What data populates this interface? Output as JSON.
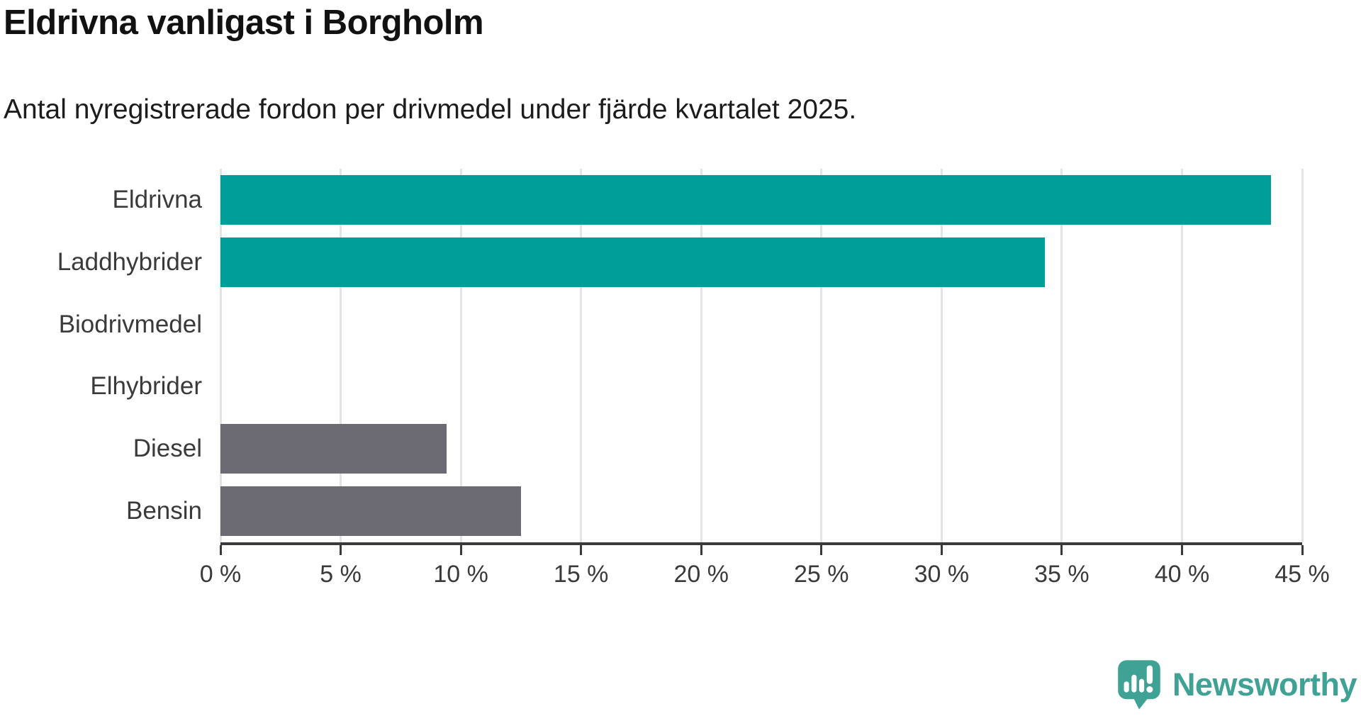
{
  "header": {
    "title": "Eldrivna vanligast i Borgholm",
    "subtitle": "Antal nyregistrerade fordon per drivmedel under fjärde kvartalet 2025."
  },
  "chart_data": {
    "type": "bar",
    "orientation": "horizontal",
    "title": "Eldrivna vanligast i Borgholm",
    "subtitle": "Antal nyregistrerade fordon per drivmedel under fjärde kvartalet 2025.",
    "categories": [
      "Eldrivna",
      "Laddhybrider",
      "Biodrivmedel",
      "Elhybrider",
      "Diesel",
      "Bensin"
    ],
    "values": [
      43.7,
      34.3,
      0,
      0,
      9.4,
      12.5
    ],
    "unit": "%",
    "bar_colors": [
      "#009e99",
      "#009e99",
      "#009e99",
      "#009e99",
      "#6c6a72",
      "#6c6a72"
    ],
    "xlim": [
      0,
      45
    ],
    "x_tick_step": 5,
    "x_ticks": [
      0,
      5,
      10,
      15,
      20,
      25,
      30,
      35,
      40,
      45
    ],
    "x_tick_labels": [
      "0 %",
      "5 %",
      "10 %",
      "15 %",
      "20 %",
      "25 %",
      "30 %",
      "35 %",
      "40 %",
      "45 %"
    ],
    "grid": true,
    "legend": false
  },
  "branding": {
    "logo_text": "Newsworthy"
  },
  "colors": {
    "accent_teal": "#009e99",
    "neutral_gray": "#6c6a72",
    "gridline": "#e4e4e4",
    "axis": "#3a3a3a",
    "label_text": "#3a3a3a",
    "title_text": "#111111",
    "logo_teal": "#3fa294"
  }
}
